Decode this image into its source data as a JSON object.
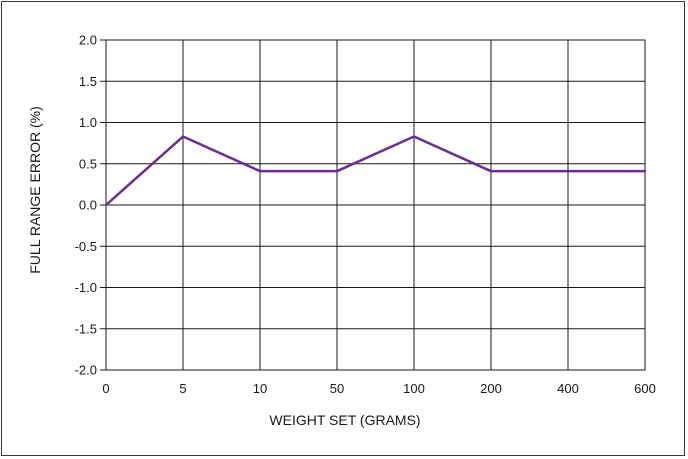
{
  "chart_data": {
    "type": "line",
    "title": "",
    "xlabel": "WEIGHT SET (GRAMS)",
    "ylabel": "FULL RANGE ERROR (%)",
    "categories": [
      "0",
      "5",
      "10",
      "50",
      "100",
      "200",
      "400",
      "600"
    ],
    "y_ticks": [
      "2.0",
      "1.5",
      "1.0",
      "0.5",
      "0.0",
      "-0.5",
      "-1.0",
      "-1.5",
      "-2.0"
    ],
    "ylim": [
      -2.0,
      2.0
    ],
    "grid": true,
    "series": [
      {
        "values": [
          0.0,
          0.83,
          0.41,
          0.41,
          0.83,
          0.41,
          0.41,
          0.41
        ]
      }
    ],
    "colors": {
      "line": "#6b2d8f",
      "grid": "#1a1a1a",
      "axis": "#1a1a1a"
    }
  }
}
